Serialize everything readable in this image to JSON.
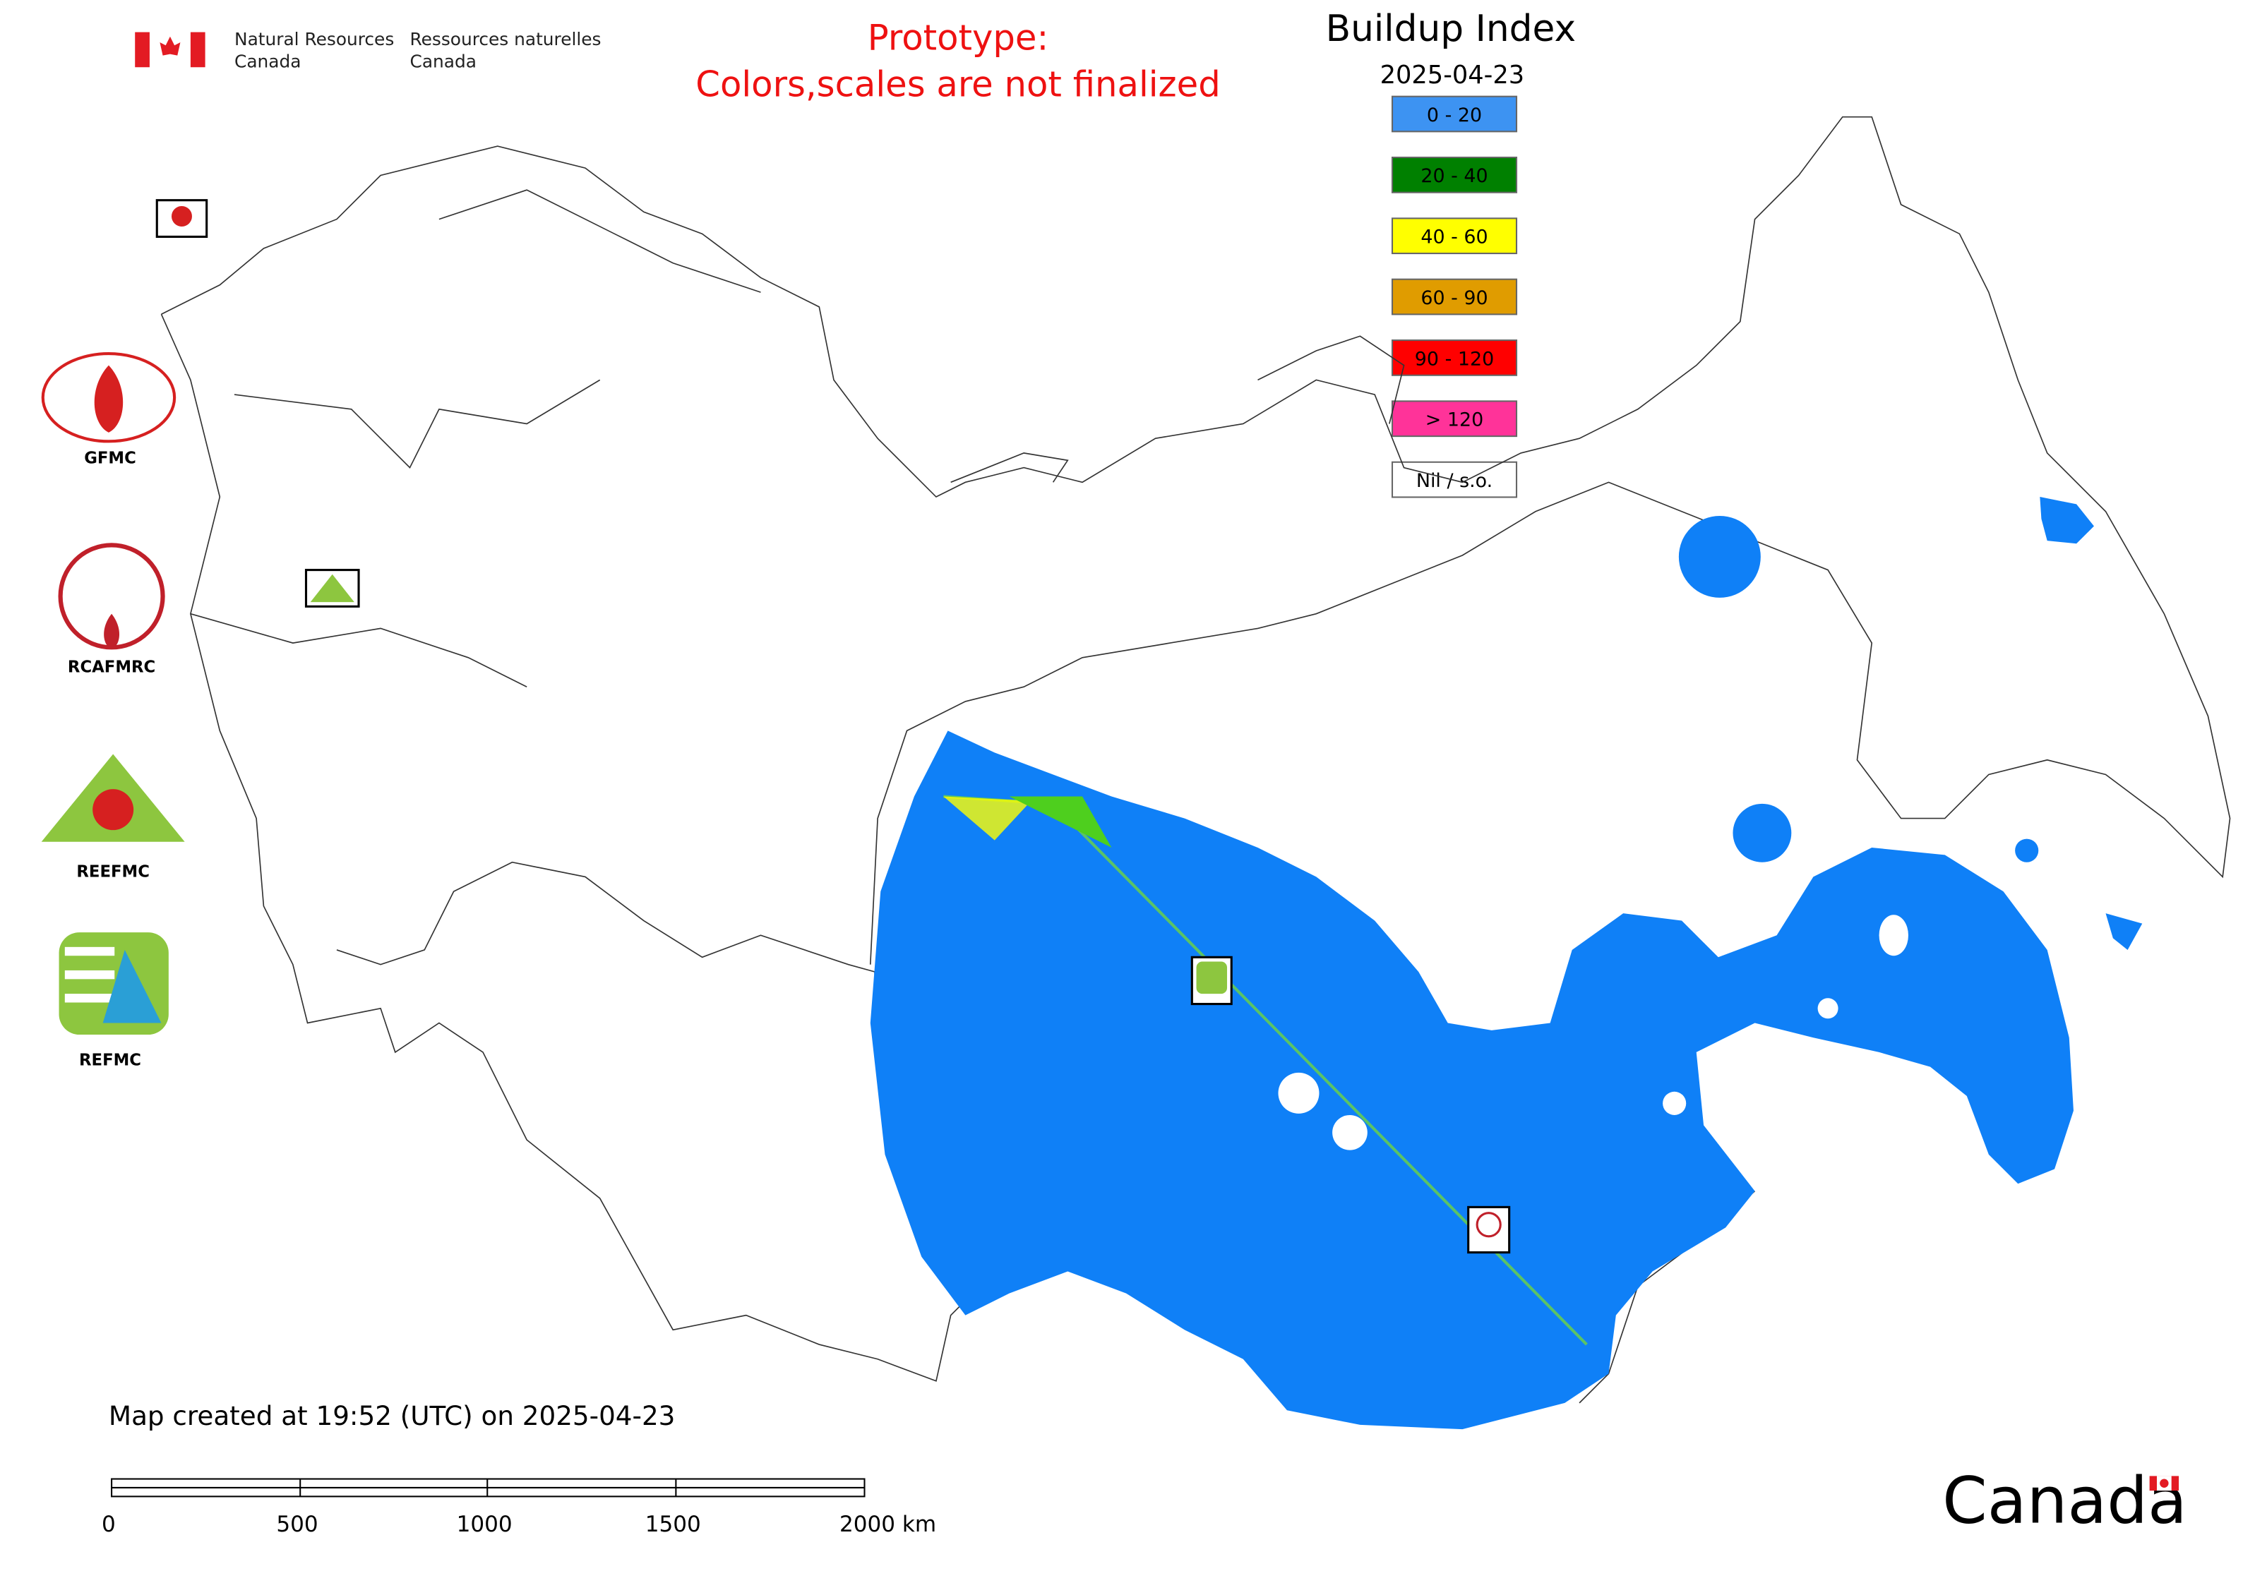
{
  "header": {
    "dept_en_1": "Natural Resources",
    "dept_en_2": "Canada",
    "dept_fr_1": "Ressources naturelles",
    "dept_fr_2": "Canada",
    "notice_1": "Prototype:",
    "notice_2": "Colors,scales are not finalized"
  },
  "legend": {
    "title": "Buildup Index",
    "date": "2025-04-23",
    "items": [
      {
        "label": "0 - 20",
        "color": "#3d93f2"
      },
      {
        "label": "20 - 40",
        "color": "#008000"
      },
      {
        "label": "40 - 60",
        "color": "#ffff00"
      },
      {
        "label": "60 - 90",
        "color": "#e09c00"
      },
      {
        "label": "90 - 120",
        "color": "#ff0000"
      },
      {
        "label": "> 120",
        "color": "#ff3399"
      },
      {
        "label": "Nil / s.o.",
        "color": "#ffffff"
      }
    ]
  },
  "logos": [
    "GFMC",
    "RCAFMRC",
    "REEFMC",
    "REFMC"
  ],
  "footer": {
    "created": "Map created at 19:52 (UTC) on 2025-04-23",
    "scale_labels": [
      "0",
      "500",
      "1000",
      "1500",
      "2000 km"
    ],
    "wordmark": "Canada"
  }
}
